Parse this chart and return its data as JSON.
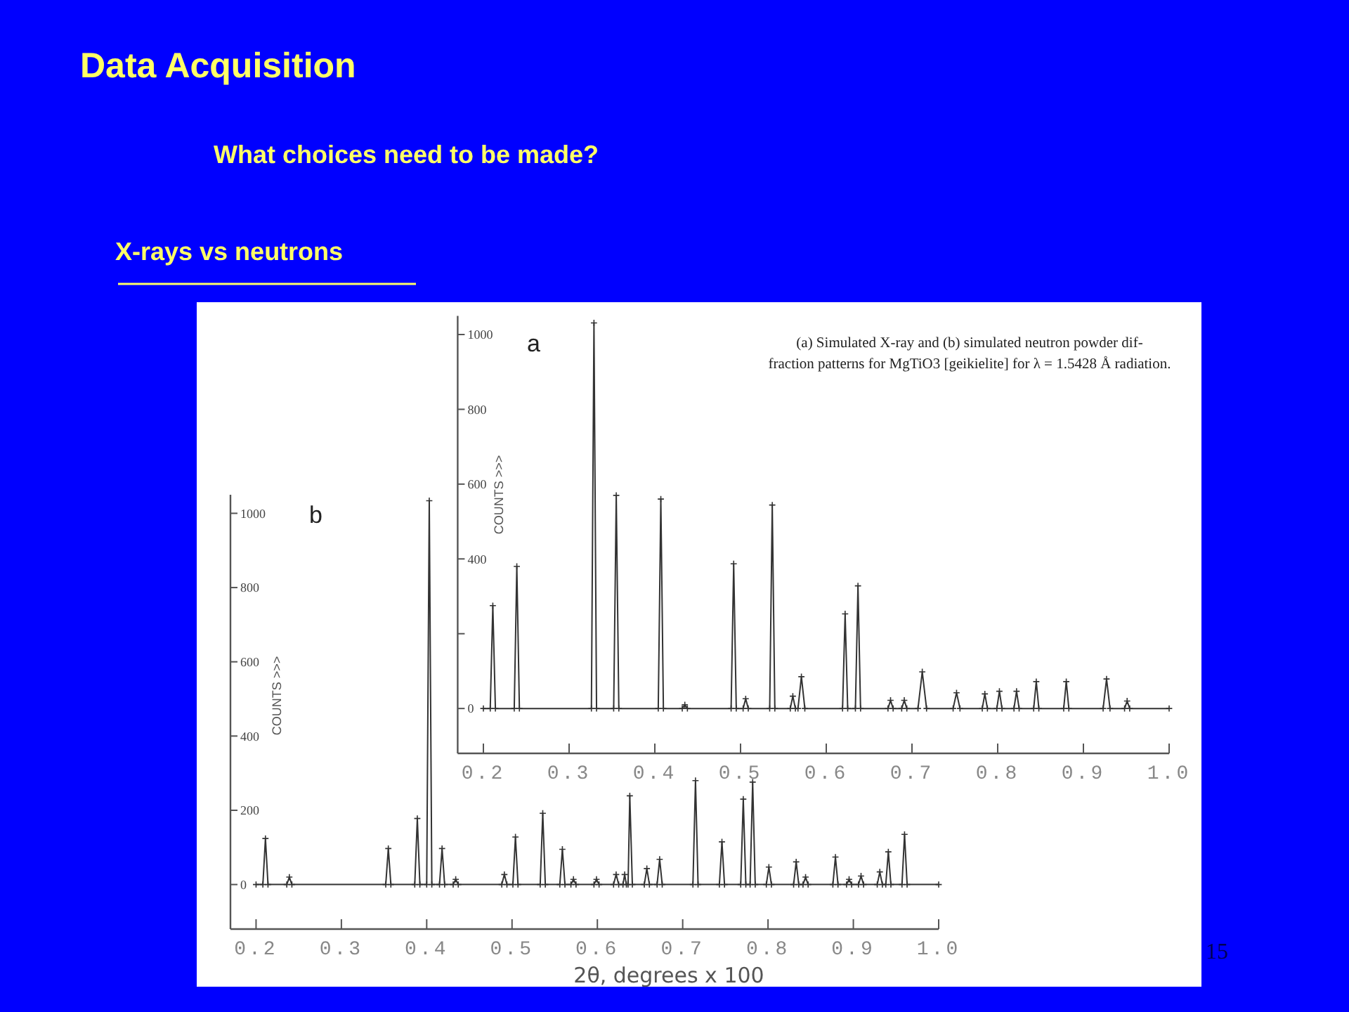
{
  "chart_data": [
    {
      "type": "other",
      "title": "Data Acquisition",
      "subtitle": "What choices need to be made?",
      "annotations": [
        "X-rays vs neutrons",
        "15"
      ]
    },
    {
      "type": "line",
      "ylabel": "COUNTS >>>",
      "annotations": [
        "a",
        "(a) Simulated X-ray and (b) simulated neutron powder dif-\nfraction patterns for MgTiO3 [geikielite] for λ = 1.5428 Å radiation."
      ],
      "xlim": [
        0.17,
        1.0
      ],
      "xticks": [
        0.2,
        0.3,
        0.4,
        0.5,
        0.6,
        0.7,
        0.8,
        0.9,
        {
          "value": 1,
          "label": "1.0"
        }
      ],
      "ylim": [
        -120,
        1050
      ],
      "yticks": [
        0,
        {
          "value": 200,
          "label": null
        },
        400,
        600,
        800,
        1000
      ],
      "grid": false,
      "marker": "cross",
      "line_style": "solid",
      "x": [
        0.2,
        0.208,
        0.211,
        0.214,
        0.236,
        0.239,
        0.242,
        0.326,
        0.329,
        0.332,
        0.352,
        0.355,
        0.358,
        0.404,
        0.407,
        0.41,
        0.432,
        0.435,
        0.438,
        0.489,
        0.492,
        0.495,
        0.503,
        0.506,
        0.509,
        0.534,
        0.537,
        0.54,
        0.558,
        0.561,
        0.564,
        0.567,
        0.571,
        0.575,
        0.619,
        0.622,
        0.625,
        0.634,
        0.637,
        0.64,
        0.672,
        0.675,
        0.678,
        0.688,
        0.691,
        0.694,
        0.707,
        0.712,
        0.717,
        0.748,
        0.752,
        0.756,
        0.782,
        0.785,
        0.788,
        0.799,
        0.802,
        0.805,
        0.819,
        0.822,
        0.825,
        0.842,
        0.845,
        0.848,
        0.877,
        0.88,
        0.883,
        0.923,
        0.927,
        0.931,
        0.948,
        0.951,
        0.954,
        1.0
      ],
      "series": [
        {
          "color": "#333333",
          "values": [
            0,
            0,
            275,
            0,
            0,
            380,
            0,
            0,
            1031,
            0,
            0,
            570,
            0,
            0,
            560,
            0,
            0,
            10,
            0,
            0,
            387,
            0,
            0,
            26,
            0,
            0,
            544,
            0,
            0,
            33,
            0,
            0,
            85,
            0,
            0,
            253,
            0,
            0,
            328,
            0,
            0,
            22,
            0,
            0,
            22,
            0,
            0,
            98,
            0,
            0,
            42,
            0,
            0,
            39,
            0,
            0,
            46,
            0,
            0,
            46,
            0,
            0,
            72,
            0,
            0,
            72,
            0,
            0,
            79,
            0,
            0,
            20,
            0,
            0
          ]
        }
      ]
    },
    {
      "type": "line",
      "xlabel": "2θ, degrees x 100",
      "ylabel": "COUNTS >>>",
      "annotations": [
        "b"
      ],
      "xlim": [
        0.17,
        1.0
      ],
      "xticks": [
        0.2,
        0.3,
        0.4,
        0.5,
        0.6,
        0.7,
        0.8,
        0.9,
        {
          "value": 1,
          "label": "1.0"
        }
      ],
      "ylim": [
        -120,
        1050
      ],
      "yticks": [
        0,
        200,
        400,
        600,
        800,
        1000
      ],
      "grid": false,
      "marker": "cross",
      "line_style": "solid",
      "x": [
        0.2,
        0.208,
        0.211,
        0.214,
        0.236,
        0.239,
        0.242,
        0.352,
        0.355,
        0.358,
        0.386,
        0.389,
        0.392,
        0.4,
        0.403,
        0.406,
        0.415,
        0.418,
        0.421,
        0.431,
        0.434,
        0.437,
        0.488,
        0.491,
        0.494,
        0.501,
        0.504,
        0.507,
        0.533,
        0.536,
        0.539,
        0.556,
        0.559,
        0.562,
        0.569,
        0.572,
        0.575,
        0.596,
        0.599,
        0.602,
        0.619,
        0.622,
        0.625,
        0.63,
        0.632,
        0.634,
        0.636,
        0.638,
        0.641,
        0.655,
        0.658,
        0.661,
        0.67,
        0.673,
        0.676,
        0.712,
        0.715,
        0.718,
        0.743,
        0.746,
        0.749,
        0.768,
        0.771,
        0.774,
        0.779,
        0.782,
        0.785,
        0.798,
        0.801,
        0.804,
        0.83,
        0.833,
        0.836,
        0.841,
        0.844,
        0.847,
        0.876,
        0.879,
        0.882,
        0.892,
        0.895,
        0.898,
        0.906,
        0.909,
        0.912,
        0.928,
        0.931,
        0.934,
        0.938,
        0.941,
        0.944,
        0.957,
        0.96,
        0.963,
        1.0
      ],
      "series": [
        {
          "color": "#333333",
          "values": [
            0,
            0,
            124,
            0,
            0,
            20,
            0,
            0,
            97,
            0,
            0,
            178,
            0,
            0,
            1034,
            0,
            0,
            97,
            0,
            0,
            14,
            0,
            0,
            27,
            0,
            0,
            128,
            0,
            0,
            192,
            0,
            0,
            95,
            0,
            0,
            14,
            0,
            0,
            14,
            0,
            0,
            27,
            0,
            0,
            27,
            0,
            0,
            239,
            0,
            0,
            43,
            0,
            0,
            68,
            0,
            0,
            280,
            0,
            0,
            115,
            0,
            0,
            230,
            0,
            0,
            276,
            0,
            0,
            47,
            0,
            0,
            61,
            0,
            0,
            20,
            0,
            0,
            74,
            0,
            0,
            14,
            0,
            0,
            23,
            0,
            0,
            34,
            0,
            0,
            88,
            0,
            0,
            135,
            0,
            0
          ]
        }
      ]
    }
  ]
}
